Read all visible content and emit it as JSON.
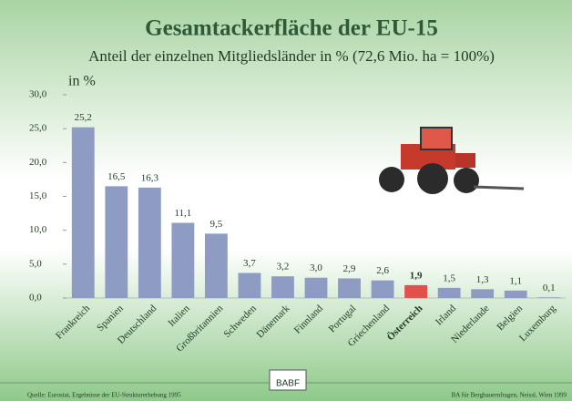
{
  "chart_data": {
    "type": "bar",
    "title": "Gesamtackerfläche der EU-15",
    "subtitle": "Anteil der einzelnen Mitgliedsländer in % (72,6 Mio. ha = 100%)",
    "ylabel": "in %",
    "categories": [
      "Frankreich",
      "Spanien",
      "Deutschland",
      "Italien",
      "Großbritannien",
      "Schweden",
      "Dänemark",
      "Finnland",
      "Portugal",
      "Griechenland",
      "Österreich",
      "Irland",
      "Niederlande",
      "Belgien",
      "Luxemburg"
    ],
    "values": [
      25.2,
      16.5,
      16.3,
      11.1,
      9.5,
      3.7,
      3.2,
      3.0,
      2.9,
      2.6,
      1.9,
      1.5,
      1.3,
      1.1,
      0.1
    ],
    "value_labels": [
      "25,2",
      "16,5",
      "16,3",
      "11,1",
      "9,5",
      "3,7",
      "3,2",
      "3,0",
      "2,9",
      "2,6",
      "1,9",
      "1,5",
      "1,3",
      "1,1",
      "0,1"
    ],
    "colors": [
      "#8e9cc4",
      "#8e9cc4",
      "#8e9cc4",
      "#8e9cc4",
      "#8e9cc4",
      "#8e9cc4",
      "#8e9cc4",
      "#8e9cc4",
      "#8e9cc4",
      "#8e9cc4",
      "#e2504e",
      "#8e9cc4",
      "#8e9cc4",
      "#8e9cc4",
      "#8e9cc4"
    ],
    "ylim": [
      0,
      30
    ],
    "yticks": [
      {
        "value": 0,
        "label": "0,0"
      },
      {
        "value": 5,
        "label": "5,0"
      },
      {
        "value": 10,
        "label": "10,0"
      },
      {
        "value": 15,
        "label": "15,0"
      },
      {
        "value": 20,
        "label": "20,0"
      },
      {
        "value": 25,
        "label": "25,0"
      },
      {
        "value": 30,
        "label": "30,0"
      }
    ],
    "source": "Quelle: Eurostat, Ergebnisse der EU-Strukturerhebung 1995",
    "credit": "BA für Bergbauernfragen, Neissl, Wien 1999",
    "logo": "BABF"
  }
}
